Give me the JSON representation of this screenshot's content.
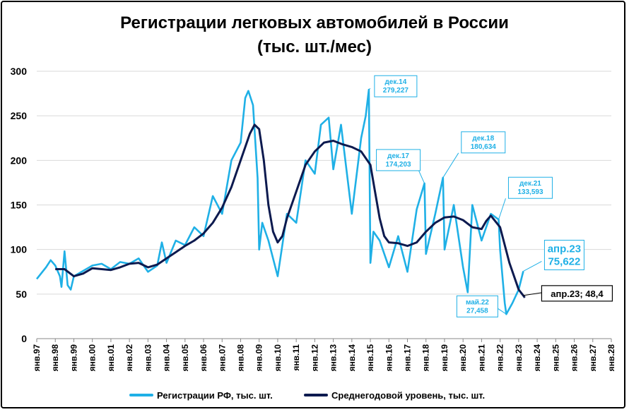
{
  "chart_data": {
    "type": "line",
    "title": "Регистрации легковых автомобилей в России",
    "subtitle": "(тыс. шт./мес)",
    "ylim": [
      0,
      300
    ],
    "yticks": [
      0,
      50,
      100,
      150,
      200,
      250,
      300
    ],
    "xlim": [
      "янв.97",
      "янв.28"
    ],
    "grid": "horizontal",
    "legend_position": "bottom",
    "x_tick_labels": [
      "янв.97",
      "янв.98",
      "янв.99",
      "янв.00",
      "янв.01",
      "янв.02",
      "янв.03",
      "янв.04",
      "янв.05",
      "янв.06",
      "янв.07",
      "янв.08",
      "янв.09",
      "янв.10",
      "янв.11",
      "янв.12",
      "янв.13",
      "янв.14",
      "янв.15",
      "янв.16",
      "янв.17",
      "янв.18",
      "янв.19",
      "янв.20",
      "янв.21",
      "янв.22",
      "янв.23",
      "янв.24",
      "янв.25",
      "янв.26",
      "янв.27",
      "янв.28"
    ],
    "series": [
      {
        "name": "Регистрации РФ, тыс. шт.",
        "color": "#1fb0e6",
        "points": [
          [
            "янв.97",
            67
          ],
          [
            "июл.97",
            80
          ],
          [
            "окт.97",
            88
          ],
          [
            "янв.98",
            82
          ],
          [
            "апр.98",
            70
          ],
          [
            "май.98",
            58
          ],
          [
            "июл.98",
            98
          ],
          [
            "сен.98",
            60
          ],
          [
            "ноя.98",
            55
          ],
          [
            "янв.99",
            70
          ],
          [
            "июл.99",
            76
          ],
          [
            "янв.00",
            82
          ],
          [
            "июл.00",
            84
          ],
          [
            "янв.01",
            78
          ],
          [
            "июл.01",
            86
          ],
          [
            "янв.02",
            84
          ],
          [
            "июл.02",
            90
          ],
          [
            "янв.03",
            75
          ],
          [
            "июл.03",
            82
          ],
          [
            "окт.03",
            108
          ],
          [
            "янв.04",
            85
          ],
          [
            "июл.04",
            110
          ],
          [
            "янв.05",
            105
          ],
          [
            "июл.05",
            125
          ],
          [
            "янв.06",
            115
          ],
          [
            "июл.06",
            160
          ],
          [
            "янв.07",
            140
          ],
          [
            "июл.07",
            200
          ],
          [
            "янв.08",
            220
          ],
          [
            "апр.08",
            270
          ],
          [
            "июн.08",
            278
          ],
          [
            "сен.08",
            262
          ],
          [
            "дек.08",
            180
          ],
          [
            "янв.09",
            100
          ],
          [
            "мар.09",
            130
          ],
          [
            "июл.09",
            110
          ],
          [
            "янв.10",
            70
          ],
          [
            "апр.10",
            105
          ],
          [
            "июл.10",
            140
          ],
          [
            "янв.11",
            130
          ],
          [
            "июл.11",
            200
          ],
          [
            "янв.12",
            185
          ],
          [
            "май.12",
            240
          ],
          [
            "окт.12",
            248
          ],
          [
            "янв.13",
            190
          ],
          [
            "июн.13",
            240
          ],
          [
            "янв.14",
            140
          ],
          [
            "июл.14",
            225
          ],
          [
            "окт.14",
            250
          ],
          [
            "дек.14",
            279.227
          ],
          [
            "янв.15",
            85
          ],
          [
            "мар.15",
            120
          ],
          [
            "июл.15",
            110
          ],
          [
            "янв.16",
            80
          ],
          [
            "июл.16",
            115
          ],
          [
            "янв.17",
            75
          ],
          [
            "июл.17",
            145
          ],
          [
            "дек.17",
            174.203
          ],
          [
            "янв.18",
            95
          ],
          [
            "июл.18",
            140
          ],
          [
            "дек.18",
            180.634
          ],
          [
            "янв.19",
            100
          ],
          [
            "июл.19",
            150
          ],
          [
            "янв.20",
            80
          ],
          [
            "апр.20",
            52
          ],
          [
            "июл.20",
            150
          ],
          [
            "янв.21",
            110
          ],
          [
            "июл.21",
            140
          ],
          [
            "дек.21",
            133.593
          ],
          [
            "янв.22",
            100
          ],
          [
            "апр.22",
            40
          ],
          [
            "май.22",
            27.458
          ],
          [
            "сен.22",
            40
          ],
          [
            "янв.23",
            55
          ],
          [
            "апр.23",
            75.622
          ]
        ]
      },
      {
        "name": "Среднегодовой уровень, тыс. шт.",
        "color": "#0d1a4f",
        "points": [
          [
            "янв.98",
            78
          ],
          [
            "июл.98",
            78
          ],
          [
            "янв.99",
            70
          ],
          [
            "июл.99",
            73
          ],
          [
            "янв.00",
            79
          ],
          [
            "июл.00",
            78
          ],
          [
            "янв.01",
            77
          ],
          [
            "июл.01",
            80
          ],
          [
            "янв.02",
            84
          ],
          [
            "июл.02",
            85
          ],
          [
            "янв.03",
            80
          ],
          [
            "июл.03",
            83
          ],
          [
            "янв.04",
            90
          ],
          [
            "июл.04",
            97
          ],
          [
            "янв.05",
            104
          ],
          [
            "июл.05",
            110
          ],
          [
            "янв.06",
            118
          ],
          [
            "июл.06",
            130
          ],
          [
            "янв.07",
            147
          ],
          [
            "июл.07",
            170
          ],
          [
            "янв.08",
            200
          ],
          [
            "июл.08",
            230
          ],
          [
            "окт.08",
            240
          ],
          [
            "янв.09",
            235
          ],
          [
            "апр.09",
            200
          ],
          [
            "июл.09",
            150
          ],
          [
            "окт.09",
            120
          ],
          [
            "янв.10",
            108
          ],
          [
            "апр.10",
            115
          ],
          [
            "июл.10",
            135
          ],
          [
            "янв.11",
            165
          ],
          [
            "июл.11",
            195
          ],
          [
            "янв.12",
            210
          ],
          [
            "июл.12",
            220
          ],
          [
            "янв.13",
            222
          ],
          [
            "июл.13",
            218
          ],
          [
            "янв.14",
            215
          ],
          [
            "июл.14",
            210
          ],
          [
            "янв.15",
            195
          ],
          [
            "апр.15",
            165
          ],
          [
            "июл.15",
            135
          ],
          [
            "окт.15",
            115
          ],
          [
            "янв.16",
            108
          ],
          [
            "июл.16",
            107
          ],
          [
            "янв.17",
            104
          ],
          [
            "июл.17",
            108
          ],
          [
            "янв.18",
            120
          ],
          [
            "июл.18",
            130
          ],
          [
            "янв.19",
            136
          ],
          [
            "июл.19",
            137
          ],
          [
            "янв.20",
            133
          ],
          [
            "июл.20",
            125
          ],
          [
            "янв.21",
            123
          ],
          [
            "апр.21",
            132
          ],
          [
            "июл.21",
            138
          ],
          [
            "янв.22",
            125
          ],
          [
            "июл.22",
            85
          ],
          [
            "янв.23",
            55
          ],
          [
            "апр.23",
            48.4
          ],
          [
            "май.23",
            46
          ]
        ]
      }
    ],
    "annotations": [
      {
        "label": "дек.14",
        "value": "279,227",
        "series": 0,
        "x": "дек.14",
        "y": 279.227
      },
      {
        "label": "дек.17",
        "value": "174,203",
        "series": 0,
        "x": "дек.17",
        "y": 174.203
      },
      {
        "label": "дек.18",
        "value": "180,634",
        "series": 0,
        "x": "дек.18",
        "y": 180.634
      },
      {
        "label": "дек.21",
        "value": "133,593",
        "series": 0,
        "x": "дек.21",
        "y": 133.593
      },
      {
        "label": "май.22",
        "value": "27,458",
        "series": 0,
        "x": "май.22",
        "y": 27.458
      },
      {
        "label": "апр.23",
        "value": "75,622",
        "series": 0,
        "x": "апр.23",
        "y": 75.622
      },
      {
        "label": "апр.23;  48,4",
        "series": 1,
        "x": "апр.23",
        "y": 48.4
      }
    ]
  }
}
